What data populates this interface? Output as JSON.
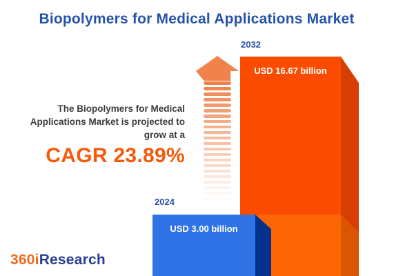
{
  "title": "Biopolymers for Medical Applications Market",
  "chart_data": {
    "type": "bar",
    "categories": [
      "2024",
      "2032"
    ],
    "values": [
      3.0,
      16.67
    ],
    "unit": "USD billion",
    "value_labels": [
      "USD 3.00 billion",
      "USD 16.67 billion"
    ],
    "title": "Biopolymers for Medical Applications Market",
    "cagr_percent": 23.89,
    "grid": false,
    "legend_position": "none"
  },
  "bars": [
    {
      "year": "2024",
      "value_label": "USD 3.00 billion"
    },
    {
      "year": "2032",
      "value_label": "USD 16.67 billion"
    }
  ],
  "annotation": {
    "lines": [
      "The Biopolymers for Medical",
      "Applications Market is projected to",
      "grow at a"
    ],
    "cagr_label": "CAGR 23.89%"
  },
  "logo": {
    "part1": "360i",
    "part2": "Research"
  },
  "colors": {
    "title_blue": "#2653A8",
    "bar_2032_front": "#FB4B01",
    "bar_2032_side": "#D63E02",
    "bar_2032_lower_front": "#FC6503",
    "bar_2032_lower_side": "#DC5502",
    "bar_2024_front": "#2F73E7",
    "bar_2024_side": "#04318C",
    "arrow_orange": "#F1824E",
    "dash_orange": "#EE7B40",
    "cagr_orange": "#F45A0B",
    "text_dark": "#3B3B3B",
    "logo_orange": "#F26A21",
    "logo_blue": "#2B3F90",
    "background": "#FFFFFF"
  }
}
